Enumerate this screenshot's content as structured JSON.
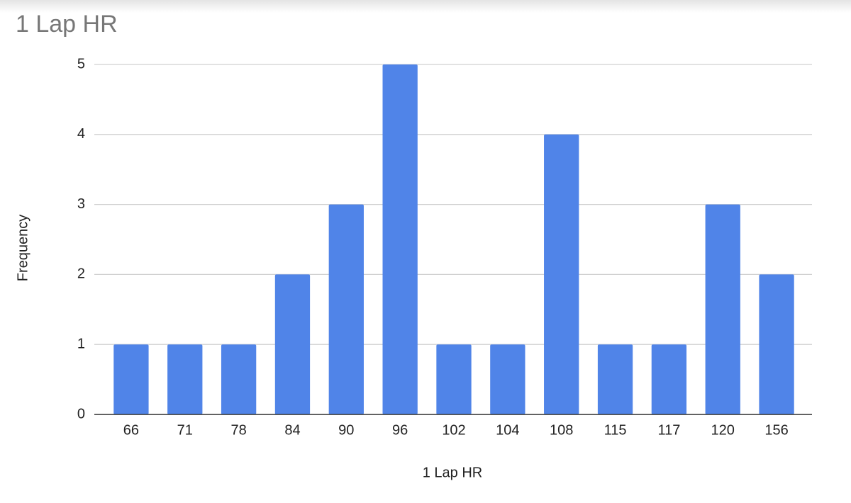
{
  "chart_data": {
    "type": "bar",
    "title": "1 Lap HR",
    "x_label": "1 Lap HR",
    "y_label": "Frequency",
    "categories": [
      "66",
      "71",
      "78",
      "84",
      "90",
      "96",
      "102",
      "104",
      "108",
      "115",
      "117",
      "120",
      "156"
    ],
    "values": [
      1,
      1,
      1,
      2,
      3,
      5,
      1,
      1,
      4,
      1,
      1,
      3,
      2
    ],
    "color": "#5084e8",
    "ylim": [
      0,
      5
    ],
    "yticks": [
      0,
      1,
      2,
      3,
      4,
      5
    ],
    "grid": true
  }
}
